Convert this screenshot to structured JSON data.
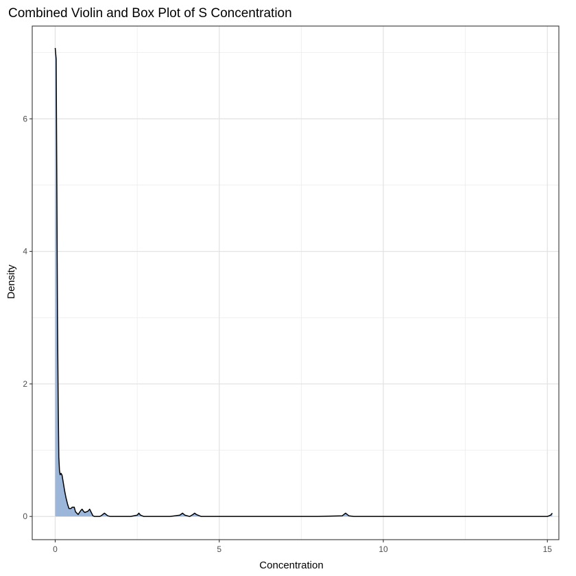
{
  "chart_data": {
    "type": "area",
    "title": "Combined Violin and Box Plot of S Concentration",
    "xlabel": "Concentration",
    "ylabel": "Density",
    "xlim": [
      -0.7,
      15.35
    ],
    "ylim": [
      -0.35,
      7.4
    ],
    "x_ticks": [
      0,
      5,
      10,
      15
    ],
    "y_ticks": [
      0,
      2,
      4,
      6
    ],
    "x_tick_labels": [
      "0",
      "5",
      "10",
      "15"
    ],
    "y_tick_labels": [
      "0",
      "2",
      "4",
      "6"
    ],
    "grid": true,
    "legend": "none",
    "fill_color": "#9bb6d9",
    "line_color": "#000000",
    "series": [
      {
        "x": [
          0.0,
          0.03,
          0.05,
          0.07,
          0.09,
          0.11,
          0.13,
          0.15,
          0.18,
          0.21,
          0.25,
          0.29,
          0.33,
          0.38,
          0.42,
          0.48,
          0.52,
          0.58,
          0.62,
          0.66,
          0.7,
          0.74,
          0.78,
          0.82,
          0.86,
          0.9,
          0.95,
          1.0,
          1.05,
          1.1,
          1.15,
          1.2,
          1.25,
          1.3,
          1.35,
          1.4,
          1.5,
          1.6,
          1.68,
          1.73,
          1.78,
          1.85,
          2.0,
          2.3,
          2.5,
          2.55,
          2.6,
          2.7,
          3.0,
          3.5,
          3.8,
          3.88,
          3.95,
          4.1,
          4.2,
          4.25,
          4.3,
          4.45,
          5.0,
          6.0,
          7.0,
          8.0,
          8.75,
          8.85,
          8.95,
          9.1,
          10.0,
          11.0,
          12.0,
          13.0,
          14.0,
          15.0,
          15.1,
          15.15
        ],
        "y": [
          7.07,
          6.9,
          5.0,
          3.0,
          1.8,
          0.9,
          0.7,
          0.63,
          0.65,
          0.62,
          0.5,
          0.38,
          0.28,
          0.18,
          0.12,
          0.12,
          0.14,
          0.14,
          0.07,
          0.05,
          0.03,
          0.06,
          0.09,
          0.11,
          0.08,
          0.06,
          0.07,
          0.08,
          0.11,
          0.06,
          0.01,
          0.0,
          0.0,
          0.0,
          0.0,
          0.01,
          0.05,
          0.01,
          0.0,
          0.0,
          0.0,
          0.0,
          0.0,
          0.0,
          0.02,
          0.05,
          0.02,
          0.0,
          0.0,
          0.0,
          0.02,
          0.05,
          0.02,
          0.0,
          0.03,
          0.05,
          0.03,
          0.0,
          0.0,
          0.0,
          0.0,
          0.0,
          0.01,
          0.05,
          0.01,
          0.0,
          0.0,
          0.0,
          0.0,
          0.0,
          0.0,
          0.0,
          0.02,
          0.05
        ]
      }
    ]
  }
}
